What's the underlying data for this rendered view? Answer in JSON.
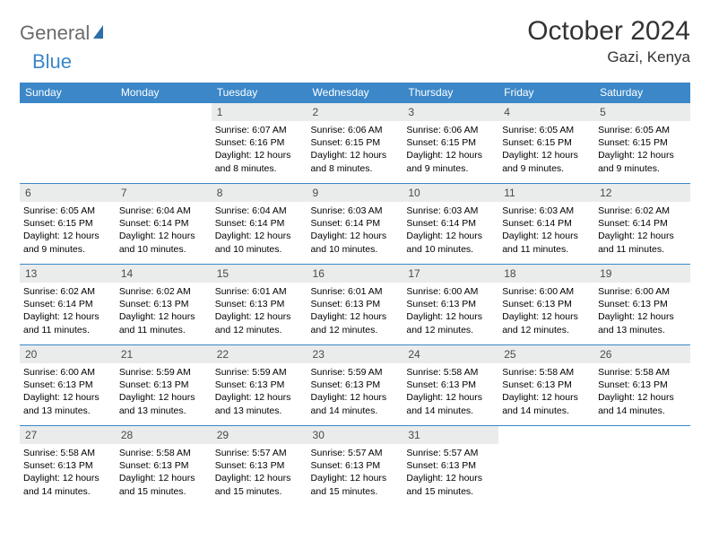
{
  "logo": {
    "text1": "General",
    "text2": "Blue",
    "text2_color": "#3b87c8",
    "icon_color": "#2d6fa8"
  },
  "header": {
    "month_title": "October 2024",
    "location": "Gazi, Kenya"
  },
  "colors": {
    "header_bg": "#3b87c8",
    "header_fg": "#ffffff",
    "daynum_bg": "#e9eceb",
    "border": "#3b87c8"
  },
  "day_headers": [
    "Sunday",
    "Monday",
    "Tuesday",
    "Wednesday",
    "Thursday",
    "Friday",
    "Saturday"
  ],
  "labels": {
    "sunrise": "Sunrise:",
    "sunset": "Sunset:",
    "daylight": "Daylight:"
  },
  "weeks": [
    [
      null,
      null,
      {
        "n": "1",
        "sunrise": "6:07 AM",
        "sunset": "6:16 PM",
        "daylight": "12 hours and 8 minutes."
      },
      {
        "n": "2",
        "sunrise": "6:06 AM",
        "sunset": "6:15 PM",
        "daylight": "12 hours and 8 minutes."
      },
      {
        "n": "3",
        "sunrise": "6:06 AM",
        "sunset": "6:15 PM",
        "daylight": "12 hours and 9 minutes."
      },
      {
        "n": "4",
        "sunrise": "6:05 AM",
        "sunset": "6:15 PM",
        "daylight": "12 hours and 9 minutes."
      },
      {
        "n": "5",
        "sunrise": "6:05 AM",
        "sunset": "6:15 PM",
        "daylight": "12 hours and 9 minutes."
      }
    ],
    [
      {
        "n": "6",
        "sunrise": "6:05 AM",
        "sunset": "6:15 PM",
        "daylight": "12 hours and 9 minutes."
      },
      {
        "n": "7",
        "sunrise": "6:04 AM",
        "sunset": "6:14 PM",
        "daylight": "12 hours and 10 minutes."
      },
      {
        "n": "8",
        "sunrise": "6:04 AM",
        "sunset": "6:14 PM",
        "daylight": "12 hours and 10 minutes."
      },
      {
        "n": "9",
        "sunrise": "6:03 AM",
        "sunset": "6:14 PM",
        "daylight": "12 hours and 10 minutes."
      },
      {
        "n": "10",
        "sunrise": "6:03 AM",
        "sunset": "6:14 PM",
        "daylight": "12 hours and 10 minutes."
      },
      {
        "n": "11",
        "sunrise": "6:03 AM",
        "sunset": "6:14 PM",
        "daylight": "12 hours and 11 minutes."
      },
      {
        "n": "12",
        "sunrise": "6:02 AM",
        "sunset": "6:14 PM",
        "daylight": "12 hours and 11 minutes."
      }
    ],
    [
      {
        "n": "13",
        "sunrise": "6:02 AM",
        "sunset": "6:14 PM",
        "daylight": "12 hours and 11 minutes."
      },
      {
        "n": "14",
        "sunrise": "6:02 AM",
        "sunset": "6:13 PM",
        "daylight": "12 hours and 11 minutes."
      },
      {
        "n": "15",
        "sunrise": "6:01 AM",
        "sunset": "6:13 PM",
        "daylight": "12 hours and 12 minutes."
      },
      {
        "n": "16",
        "sunrise": "6:01 AM",
        "sunset": "6:13 PM",
        "daylight": "12 hours and 12 minutes."
      },
      {
        "n": "17",
        "sunrise": "6:00 AM",
        "sunset": "6:13 PM",
        "daylight": "12 hours and 12 minutes."
      },
      {
        "n": "18",
        "sunrise": "6:00 AM",
        "sunset": "6:13 PM",
        "daylight": "12 hours and 12 minutes."
      },
      {
        "n": "19",
        "sunrise": "6:00 AM",
        "sunset": "6:13 PM",
        "daylight": "12 hours and 13 minutes."
      }
    ],
    [
      {
        "n": "20",
        "sunrise": "6:00 AM",
        "sunset": "6:13 PM",
        "daylight": "12 hours and 13 minutes."
      },
      {
        "n": "21",
        "sunrise": "5:59 AM",
        "sunset": "6:13 PM",
        "daylight": "12 hours and 13 minutes."
      },
      {
        "n": "22",
        "sunrise": "5:59 AM",
        "sunset": "6:13 PM",
        "daylight": "12 hours and 13 minutes."
      },
      {
        "n": "23",
        "sunrise": "5:59 AM",
        "sunset": "6:13 PM",
        "daylight": "12 hours and 14 minutes."
      },
      {
        "n": "24",
        "sunrise": "5:58 AM",
        "sunset": "6:13 PM",
        "daylight": "12 hours and 14 minutes."
      },
      {
        "n": "25",
        "sunrise": "5:58 AM",
        "sunset": "6:13 PM",
        "daylight": "12 hours and 14 minutes."
      },
      {
        "n": "26",
        "sunrise": "5:58 AM",
        "sunset": "6:13 PM",
        "daylight": "12 hours and 14 minutes."
      }
    ],
    [
      {
        "n": "27",
        "sunrise": "5:58 AM",
        "sunset": "6:13 PM",
        "daylight": "12 hours and 14 minutes."
      },
      {
        "n": "28",
        "sunrise": "5:58 AM",
        "sunset": "6:13 PM",
        "daylight": "12 hours and 15 minutes."
      },
      {
        "n": "29",
        "sunrise": "5:57 AM",
        "sunset": "6:13 PM",
        "daylight": "12 hours and 15 minutes."
      },
      {
        "n": "30",
        "sunrise": "5:57 AM",
        "sunset": "6:13 PM",
        "daylight": "12 hours and 15 minutes."
      },
      {
        "n": "31",
        "sunrise": "5:57 AM",
        "sunset": "6:13 PM",
        "daylight": "12 hours and 15 minutes."
      },
      null,
      null
    ]
  ]
}
